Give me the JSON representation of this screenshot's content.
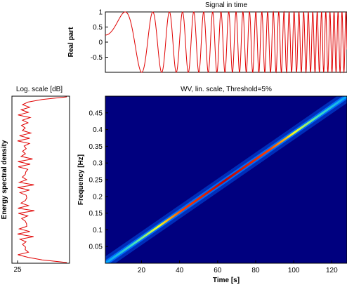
{
  "chart_data": [
    {
      "type": "line",
      "title": "Signal in time",
      "ylabel": "Real part",
      "xlim": [
        1,
        128
      ],
      "ylim": [
        -1,
        1
      ],
      "yticks": [
        "1",
        "0.5",
        "0",
        "-0.5"
      ],
      "yvals": [
        1,
        0.5,
        0,
        -0.5
      ],
      "signal": {
        "kind": "linear-chirp",
        "f_start_hz": 0.0,
        "f_end_hz": 0.5,
        "amplitude": 1,
        "color": "#e00000"
      }
    },
    {
      "type": "line",
      "title": "Log. scale [dB]",
      "ylabel": "Energy spectral density",
      "xticks": [
        "25"
      ],
      "note": "energy spectral density in dB, oscillating near 25 dB over 0-0.5 Hz with ripples",
      "color": "#e00000"
    },
    {
      "type": "heatmap",
      "title": "WV, lin. scale, Threshold=5%",
      "xlabel": "Time [s]",
      "ylabel": "Frequency [Hz]",
      "xlim": [
        1,
        128
      ],
      "ylim": [
        0,
        0.5
      ],
      "xticks": [
        "20",
        "40",
        "60",
        "80",
        "100",
        "120"
      ],
      "xvals": [
        20,
        40,
        60,
        80,
        100,
        120
      ],
      "yticks": [
        "0.05",
        "0.1",
        "0.15",
        "0.2",
        "0.25",
        "0.3",
        "0.35",
        "0.4",
        "0.45"
      ],
      "yvals": [
        0.05,
        0.1,
        0.15,
        0.2,
        0.25,
        0.3,
        0.35,
        0.4,
        0.45
      ],
      "ridge": {
        "t_start": 1,
        "f_start": 0.0,
        "t_end": 128,
        "f_end": 0.5
      },
      "colormap": "jet",
      "background": "#00007f"
    }
  ]
}
